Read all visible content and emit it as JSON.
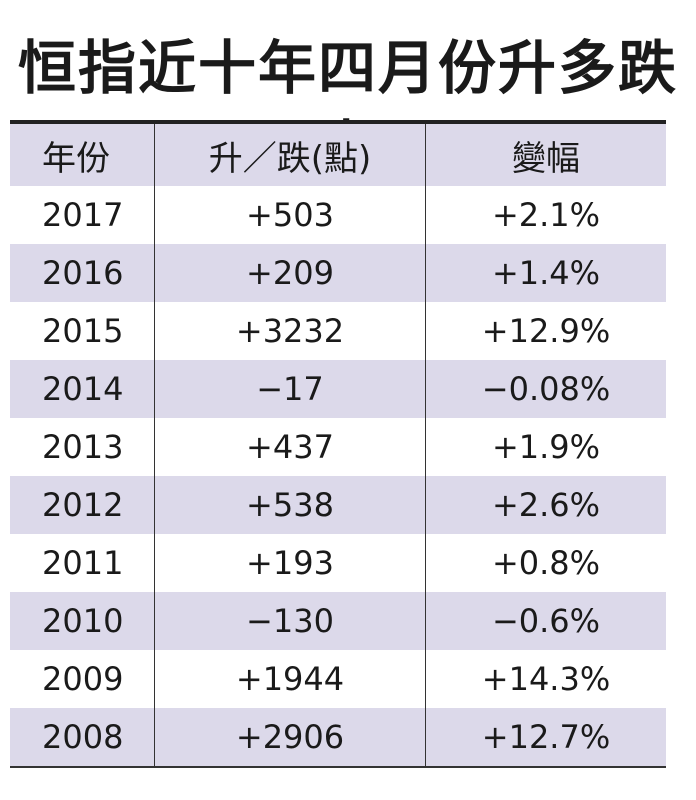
{
  "title": "恒指近十年四月份升多跌少",
  "table": {
    "header": [
      "年份",
      "升／跌(點)",
      "變幅"
    ],
    "rows": [
      [
        "2017",
        "+503",
        "+2.1%"
      ],
      [
        "2016",
        "+209",
        "+1.4%"
      ],
      [
        "2015",
        "+3232",
        "+12.9%"
      ],
      [
        "2014",
        "−17",
        "−0.08%"
      ],
      [
        "2013",
        "+437",
        "+1.9%"
      ],
      [
        "2012",
        "+538",
        "+2.6%"
      ],
      [
        "2011",
        "+193",
        "+0.8%"
      ],
      [
        "2010",
        "−130",
        "−0.6%"
      ],
      [
        "2009",
        "+1944",
        "+14.3%"
      ],
      [
        "2008",
        "+2906",
        "+12.7%"
      ]
    ]
  }
}
